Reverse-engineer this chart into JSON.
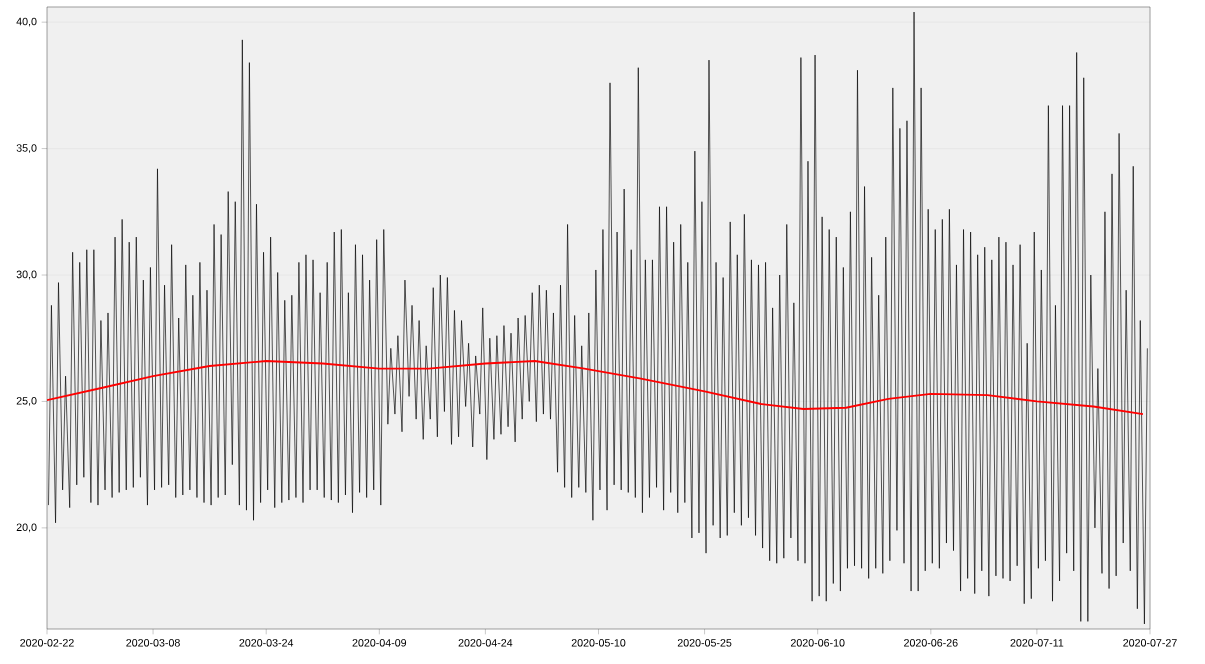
{
  "chart_data": {
    "type": "line",
    "grid": "y",
    "xlim": [
      "2020-02-22",
      "2020-07-27"
    ],
    "ylim": [
      16.0,
      40.6
    ],
    "xticks": [
      "2020-02-22",
      "2020-03-08",
      "2020-03-24",
      "2020-04-09",
      "2020-04-24",
      "2020-05-10",
      "2020-05-25",
      "2020-06-10",
      "2020-06-26",
      "2020-07-11",
      "2020-07-27"
    ],
    "yticks": [
      {
        "value": 20,
        "label": "20,0"
      },
      {
        "value": 25,
        "label": "25,0"
      },
      {
        "value": 30,
        "label": "30,0"
      },
      {
        "value": 35,
        "label": "35,0"
      },
      {
        "value": 40,
        "label": "40,0"
      }
    ],
    "series": [
      {
        "color": "#000000",
        "x": [
          "2020-02-22T05:00",
          "2020-02-22T15:00",
          "2020-02-23T05:00",
          "2020-02-23T15:00",
          "2020-02-24T05:00",
          "2020-02-24T15:00",
          "2020-02-25T05:00",
          "2020-02-25T15:00",
          "2020-02-26T05:00",
          "2020-02-26T15:00",
          "2020-02-27T05:00",
          "2020-02-27T15:00",
          "2020-02-28T05:00",
          "2020-02-28T15:00",
          "2020-02-29T05:00",
          "2020-02-29T15:00",
          "2020-03-01T05:00",
          "2020-03-01T15:00",
          "2020-03-02T05:00",
          "2020-03-02T15:00",
          "2020-03-03T05:00",
          "2020-03-03T15:00",
          "2020-03-04T05:00",
          "2020-03-04T15:00",
          "2020-03-05T05:00",
          "2020-03-05T15:00",
          "2020-03-06T05:00",
          "2020-03-06T15:00",
          "2020-03-07T05:00",
          "2020-03-07T15:00",
          "2020-03-08T05:00",
          "2020-03-08T15:00",
          "2020-03-09T05:00",
          "2020-03-09T15:00",
          "2020-03-10T05:00",
          "2020-03-10T15:00",
          "2020-03-11T05:00",
          "2020-03-11T15:00",
          "2020-03-12T05:00",
          "2020-03-12T15:00",
          "2020-03-13T05:00",
          "2020-03-13T15:00",
          "2020-03-14T05:00",
          "2020-03-14T15:00",
          "2020-03-15T05:00",
          "2020-03-15T15:00",
          "2020-03-16T05:00",
          "2020-03-16T15:00",
          "2020-03-17T05:00",
          "2020-03-17T15:00",
          "2020-03-18T05:00",
          "2020-03-18T15:00",
          "2020-03-19T05:00",
          "2020-03-19T15:00",
          "2020-03-20T05:00",
          "2020-03-20T15:00",
          "2020-03-21T05:00",
          "2020-03-21T15:00",
          "2020-03-22T05:00",
          "2020-03-22T15:00",
          "2020-03-23T05:00",
          "2020-03-23T15:00",
          "2020-03-24T05:00",
          "2020-03-24T15:00",
          "2020-03-25T05:00",
          "2020-03-25T15:00",
          "2020-03-26T05:00",
          "2020-03-26T15:00",
          "2020-03-27T05:00",
          "2020-03-27T15:00",
          "2020-03-28T05:00",
          "2020-03-28T15:00",
          "2020-03-29T05:00",
          "2020-03-29T15:00",
          "2020-03-30T05:00",
          "2020-03-30T15:00",
          "2020-03-31T05:00",
          "2020-03-31T15:00",
          "2020-04-01T05:00",
          "2020-04-01T15:00",
          "2020-04-02T05:00",
          "2020-04-02T15:00",
          "2020-04-03T05:00",
          "2020-04-03T15:00",
          "2020-04-04T05:00",
          "2020-04-04T15:00",
          "2020-04-05T05:00",
          "2020-04-05T15:00",
          "2020-04-06T05:00",
          "2020-04-06T15:00",
          "2020-04-07T05:00",
          "2020-04-07T15:00",
          "2020-04-08T05:00",
          "2020-04-08T15:00",
          "2020-04-09T05:00",
          "2020-04-09T15:00",
          "2020-04-10T05:00",
          "2020-04-10T15:00",
          "2020-04-11T05:00",
          "2020-04-11T15:00",
          "2020-04-12T05:00",
          "2020-04-12T15:00",
          "2020-04-13T05:00",
          "2020-04-13T15:00",
          "2020-04-14T05:00",
          "2020-04-14T15:00",
          "2020-04-15T05:00",
          "2020-04-15T15:00",
          "2020-04-16T05:00",
          "2020-04-16T15:00",
          "2020-04-17T05:00",
          "2020-04-17T15:00",
          "2020-04-18T05:00",
          "2020-04-18T15:00",
          "2020-04-19T05:00",
          "2020-04-19T15:00",
          "2020-04-20T05:00",
          "2020-04-20T15:00",
          "2020-04-21T05:00",
          "2020-04-21T15:00",
          "2020-04-22T05:00",
          "2020-04-22T15:00",
          "2020-04-23T05:00",
          "2020-04-23T15:00",
          "2020-04-24T05:00",
          "2020-04-24T15:00",
          "2020-04-25T05:00",
          "2020-04-25T15:00",
          "2020-04-26T05:00",
          "2020-04-26T15:00",
          "2020-04-27T05:00",
          "2020-04-27T15:00",
          "2020-04-28T05:00",
          "2020-04-28T15:00",
          "2020-04-29T05:00",
          "2020-04-29T15:00",
          "2020-04-30T05:00",
          "2020-04-30T15:00",
          "2020-05-01T05:00",
          "2020-05-01T15:00",
          "2020-05-02T05:00",
          "2020-05-02T15:00",
          "2020-05-03T05:00",
          "2020-05-03T15:00",
          "2020-05-04T05:00",
          "2020-05-04T15:00",
          "2020-05-05T05:00",
          "2020-05-05T15:00",
          "2020-05-06T05:00",
          "2020-05-06T15:00",
          "2020-05-07T05:00",
          "2020-05-07T15:00",
          "2020-05-08T05:00",
          "2020-05-08T15:00",
          "2020-05-09T05:00",
          "2020-05-09T15:00",
          "2020-05-10T05:00",
          "2020-05-10T15:00",
          "2020-05-11T05:00",
          "2020-05-11T15:00",
          "2020-05-12T05:00",
          "2020-05-12T15:00",
          "2020-05-13T05:00",
          "2020-05-13T15:00",
          "2020-05-14T05:00",
          "2020-05-14T15:00",
          "2020-05-15T05:00",
          "2020-05-15T15:00",
          "2020-05-16T05:00",
          "2020-05-16T15:00",
          "2020-05-17T05:00",
          "2020-05-17T15:00",
          "2020-05-18T05:00",
          "2020-05-18T15:00",
          "2020-05-19T05:00",
          "2020-05-19T15:00",
          "2020-05-20T05:00",
          "2020-05-20T15:00",
          "2020-05-21T05:00",
          "2020-05-21T15:00",
          "2020-05-22T05:00",
          "2020-05-22T15:00",
          "2020-05-23T05:00",
          "2020-05-23T15:00",
          "2020-05-24T05:00",
          "2020-05-24T15:00",
          "2020-05-25T05:00",
          "2020-05-25T15:00",
          "2020-05-26T05:00",
          "2020-05-26T15:00",
          "2020-05-27T05:00",
          "2020-05-27T15:00",
          "2020-05-28T05:00",
          "2020-05-28T15:00",
          "2020-05-29T05:00",
          "2020-05-29T15:00",
          "2020-05-30T05:00",
          "2020-05-30T15:00",
          "2020-05-31T05:00",
          "2020-05-31T15:00",
          "2020-06-01T05:00",
          "2020-06-01T15:00",
          "2020-06-02T05:00",
          "2020-06-02T15:00",
          "2020-06-03T05:00",
          "2020-06-03T15:00",
          "2020-06-04T05:00",
          "2020-06-04T15:00",
          "2020-06-05T05:00",
          "2020-06-05T15:00",
          "2020-06-06T05:00",
          "2020-06-06T15:00",
          "2020-06-07T05:00",
          "2020-06-07T15:00",
          "2020-06-08T05:00",
          "2020-06-08T15:00",
          "2020-06-09T05:00",
          "2020-06-09T15:00",
          "2020-06-10T05:00",
          "2020-06-10T15:00",
          "2020-06-11T05:00",
          "2020-06-11T15:00",
          "2020-06-12T05:00",
          "2020-06-12T15:00",
          "2020-06-13T05:00",
          "2020-06-13T15:00",
          "2020-06-14T05:00",
          "2020-06-14T15:00",
          "2020-06-15T05:00",
          "2020-06-15T15:00",
          "2020-06-16T05:00",
          "2020-06-16T15:00",
          "2020-06-17T05:00",
          "2020-06-17T15:00",
          "2020-06-18T05:00",
          "2020-06-18T15:00",
          "2020-06-19T05:00",
          "2020-06-19T15:00",
          "2020-06-20T05:00",
          "2020-06-20T15:00",
          "2020-06-21T05:00",
          "2020-06-21T15:00",
          "2020-06-22T05:00",
          "2020-06-22T15:00",
          "2020-06-23T05:00",
          "2020-06-23T15:00",
          "2020-06-24T05:00",
          "2020-06-24T15:00",
          "2020-06-25T05:00",
          "2020-06-25T15:00",
          "2020-06-26T05:00",
          "2020-06-26T15:00",
          "2020-06-27T05:00",
          "2020-06-27T15:00",
          "2020-06-28T05:00",
          "2020-06-28T15:00",
          "2020-06-29T05:00",
          "2020-06-29T15:00",
          "2020-06-30T05:00",
          "2020-06-30T15:00",
          "2020-07-01T05:00",
          "2020-07-01T15:00",
          "2020-07-02T05:00",
          "2020-07-02T15:00",
          "2020-07-03T05:00",
          "2020-07-03T15:00",
          "2020-07-04T05:00",
          "2020-07-04T15:00",
          "2020-07-05T05:00",
          "2020-07-05T15:00",
          "2020-07-06T05:00",
          "2020-07-06T15:00",
          "2020-07-07T05:00",
          "2020-07-07T15:00",
          "2020-07-08T05:00",
          "2020-07-08T15:00",
          "2020-07-09T05:00",
          "2020-07-09T15:00",
          "2020-07-10T05:00",
          "2020-07-10T15:00",
          "2020-07-11T05:00",
          "2020-07-11T15:00",
          "2020-07-12T05:00",
          "2020-07-12T15:00",
          "2020-07-13T05:00",
          "2020-07-13T15:00",
          "2020-07-14T05:00",
          "2020-07-14T15:00",
          "2020-07-15T05:00",
          "2020-07-15T15:00",
          "2020-07-16T05:00",
          "2020-07-16T15:00",
          "2020-07-17T05:00",
          "2020-07-17T15:00",
          "2020-07-18T05:00",
          "2020-07-18T15:00",
          "2020-07-19T05:00",
          "2020-07-19T15:00",
          "2020-07-20T05:00",
          "2020-07-20T15:00",
          "2020-07-21T05:00",
          "2020-07-21T15:00",
          "2020-07-22T05:00",
          "2020-07-22T15:00",
          "2020-07-23T05:00",
          "2020-07-23T15:00",
          "2020-07-24T05:00",
          "2020-07-24T15:00",
          "2020-07-25T05:00",
          "2020-07-25T15:00",
          "2020-07-26T05:00",
          "2020-07-26T15:00"
        ],
        "values": [
          20.9,
          28.8,
          20.2,
          29.7,
          21.5,
          26.0,
          20.8,
          30.9,
          21.7,
          30.5,
          22.0,
          31.0,
          21.0,
          31.0,
          20.9,
          28.2,
          21.5,
          28.5,
          21.2,
          31.5,
          21.4,
          32.2,
          21.5,
          31.3,
          21.6,
          31.5,
          22.0,
          29.8,
          20.9,
          30.3,
          21.5,
          34.2,
          21.6,
          29.6,
          21.7,
          31.2,
          21.2,
          28.3,
          21.3,
          30.4,
          21.5,
          29.2,
          21.2,
          30.5,
          21.0,
          29.4,
          20.9,
          32.0,
          21.2,
          31.6,
          21.3,
          33.3,
          22.5,
          32.9,
          20.9,
          39.3,
          20.7,
          38.4,
          20.3,
          32.8,
          21.0,
          30.9,
          21.5,
          31.5,
          20.8,
          30.1,
          21.0,
          29.0,
          21.1,
          29.2,
          21.2,
          30.5,
          21.0,
          30.8,
          21.5,
          30.6,
          21.5,
          29.3,
          21.2,
          30.5,
          21.1,
          31.7,
          21.0,
          31.8,
          21.3,
          29.3,
          20.6,
          31.2,
          21.4,
          30.8,
          21.2,
          29.8,
          21.5,
          31.4,
          20.9,
          31.8,
          24.1,
          27.1,
          24.5,
          27.6,
          23.8,
          29.8,
          25.2,
          28.8,
          24.3,
          28.2,
          23.5,
          27.2,
          24.3,
          29.5,
          23.6,
          30.0,
          24.6,
          29.9,
          23.3,
          28.6,
          23.6,
          28.2,
          24.8,
          27.3,
          23.2,
          26.8,
          24.5,
          28.7,
          22.7,
          27.5,
          23.5,
          27.6,
          23.7,
          28.0,
          24.0,
          27.7,
          23.4,
          28.3,
          24.3,
          28.4,
          25.0,
          29.3,
          24.2,
          29.6,
          24.5,
          29.4,
          24.3,
          28.5,
          22.2,
          29.6,
          21.6,
          32.0,
          21.2,
          28.4,
          21.6,
          27.2,
          21.4,
          28.5,
          20.3,
          30.2,
          21.5,
          31.8,
          20.7,
          37.6,
          21.7,
          31.7,
          21.5,
          33.4,
          21.4,
          31.0,
          21.2,
          38.2,
          20.6,
          30.6,
          21.2,
          30.6,
          21.6,
          32.7,
          20.7,
          32.7,
          21.4,
          31.3,
          20.6,
          32.0,
          21.0,
          30.5,
          19.6,
          34.9,
          19.8,
          32.9,
          19.0,
          38.5,
          20.1,
          30.5,
          19.6,
          29.9,
          19.7,
          32.1,
          20.6,
          30.8,
          20.1,
          32.4,
          20.4,
          30.6,
          19.7,
          30.4,
          19.2,
          30.5,
          18.7,
          28.7,
          18.6,
          30.0,
          18.8,
          32.0,
          19.6,
          28.9,
          18.7,
          38.6,
          18.6,
          34.5,
          17.1,
          38.7,
          17.3,
          32.3,
          17.1,
          31.8,
          17.8,
          31.5,
          17.5,
          30.3,
          18.4,
          32.5,
          18.5,
          38.1,
          18.4,
          33.5,
          18.0,
          30.7,
          18.4,
          29.2,
          18.2,
          31.5,
          18.7,
          37.4,
          19.9,
          35.8,
          18.6,
          36.1,
          17.5,
          40.4,
          17.5,
          37.4,
          18.3,
          32.6,
          18.6,
          31.8,
          18.4,
          32.2,
          19.4,
          32.6,
          19.1,
          30.4,
          17.5,
          31.8,
          18.0,
          31.7,
          17.4,
          30.8,
          18.3,
          31.1,
          17.3,
          30.6,
          18.1,
          31.5,
          18.0,
          31.3,
          17.9,
          30.4,
          18.5,
          31.2,
          17.0,
          27.3,
          17.2,
          31.7,
          18.4,
          30.2,
          18.7,
          36.7,
          17.1,
          28.8,
          17.9,
          36.7,
          19.0,
          36.7,
          18.3,
          38.8,
          16.3,
          37.8,
          16.3,
          30.0,
          20.0,
          26.3,
          18.2,
          32.5,
          17.6,
          34.0,
          18.1,
          35.6,
          19.4,
          29.4,
          18.3,
          34.3,
          16.8,
          28.2,
          16.2,
          27.1
        ]
      },
      {
        "color": "#ff0000",
        "x": [
          "2020-02-22",
          "2020-03-01",
          "2020-03-08",
          "2020-03-16",
          "2020-03-24",
          "2020-04-01",
          "2020-04-09",
          "2020-04-16",
          "2020-04-24",
          "2020-05-01",
          "2020-05-08",
          "2020-05-16",
          "2020-05-25",
          "2020-06-02",
          "2020-06-08",
          "2020-06-14",
          "2020-06-20",
          "2020-06-26",
          "2020-07-04",
          "2020-07-11",
          "2020-07-19",
          "2020-07-26"
        ],
        "values": [
          25.05,
          25.55,
          26.0,
          26.4,
          26.6,
          26.5,
          26.3,
          26.3,
          26.5,
          26.6,
          26.3,
          25.9,
          25.4,
          24.9,
          24.7,
          24.75,
          25.1,
          25.3,
          25.25,
          25.0,
          24.8,
          24.5
        ]
      }
    ]
  }
}
